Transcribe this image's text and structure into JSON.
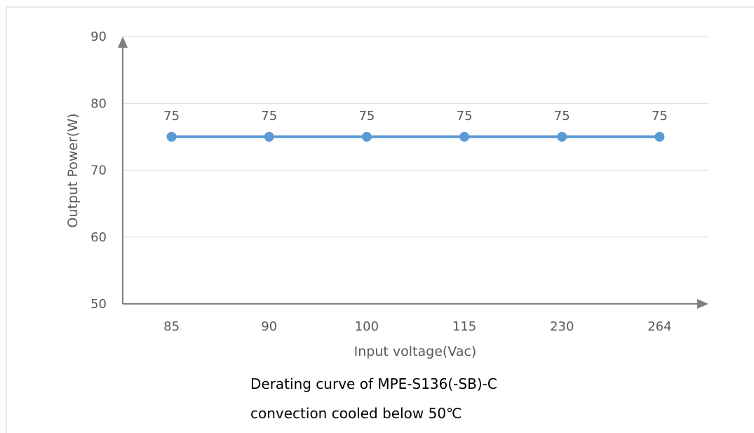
{
  "chart_data": {
    "type": "line",
    "categories": [
      "85",
      "90",
      "100",
      "115",
      "230",
      "264"
    ],
    "series": [
      {
        "values": [
          75,
          75,
          75,
          75,
          75,
          75
        ],
        "color": "#5b9bd5"
      }
    ],
    "data_labels": [
      "75",
      "75",
      "75",
      "75",
      "75",
      "75"
    ],
    "xlabel": "Input voltage(Vac)",
    "ylabel": "Output Power(W)",
    "ylim": [
      50,
      90
    ],
    "yticks": [
      "50",
      "60",
      "70",
      "80",
      "90"
    ],
    "grid": true,
    "legend": "none"
  },
  "caption": {
    "line1": "Derating curve of MPE-S136(-SB)-C",
    "line2": "convection cooled below 50℃"
  },
  "colors": {
    "axis": "#7f7f7f",
    "grid": "#d9d9d9",
    "text": "#595959",
    "series": "#5b9bd5"
  }
}
